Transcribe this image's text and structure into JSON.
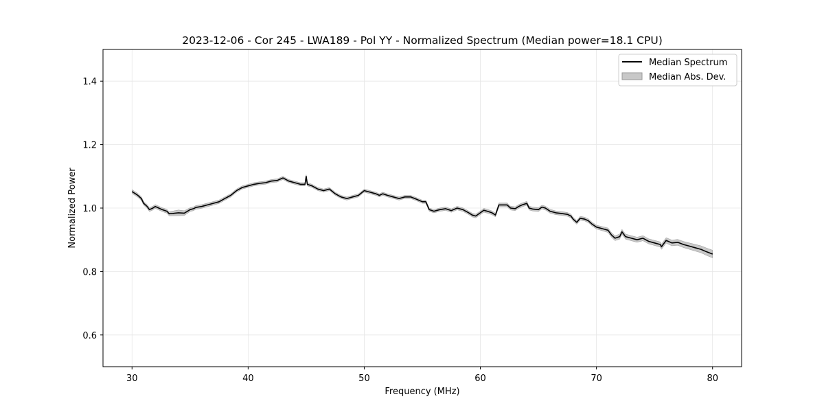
{
  "chart_data": {
    "type": "line",
    "title": "2023-12-06 - Cor 245 - LWA189 - Pol YY - Normalized Spectrum (Median power=18.1 CPU)",
    "xlabel": "Frequency (MHz)",
    "ylabel": "Normalized Power",
    "xlim": [
      27.5,
      82.5
    ],
    "ylim": [
      0.5,
      1.5
    ],
    "xticks": [
      30,
      40,
      50,
      60,
      70,
      80
    ],
    "yticks": [
      0.6,
      0.8,
      1.0,
      1.2,
      1.4
    ],
    "xtick_labels": [
      "30",
      "40",
      "50",
      "60",
      "70",
      "80"
    ],
    "ytick_labels": [
      "0.6",
      "0.8",
      "1.0",
      "1.2",
      "1.4"
    ],
    "grid": true,
    "legend": {
      "position": "top-right",
      "entries": [
        {
          "label": "Median Spectrum",
          "kind": "line"
        },
        {
          "label": "Median Abs. Dev.",
          "kind": "patch"
        }
      ]
    },
    "colors": {
      "line": "#000000",
      "band": "#b0b0b0",
      "band_edge": "#999999",
      "grid": "#e6e6e6",
      "axes": "#000000"
    },
    "series": [
      {
        "name": "Median Spectrum",
        "x": [
          30.0,
          30.3,
          30.5,
          30.8,
          31.0,
          31.3,
          31.5,
          31.8,
          32.0,
          32.3,
          32.6,
          33.0,
          33.2,
          33.5,
          34.0,
          34.5,
          35.0,
          35.3,
          35.5,
          36.0,
          36.5,
          37.0,
          37.5,
          38.0,
          38.5,
          39.0,
          39.5,
          40.0,
          40.5,
          41.0,
          41.5,
          42.0,
          42.5,
          43.0,
          43.5,
          44.0,
          44.5,
          44.9,
          45.0,
          45.1,
          45.5,
          46.0,
          46.5,
          47.0,
          47.5,
          48.0,
          48.5,
          49.0,
          49.5,
          50.0,
          50.5,
          51.0,
          51.3,
          51.6,
          52.0,
          52.5,
          53.0,
          53.5,
          54.0,
          54.5,
          55.0,
          55.3,
          55.6,
          56.0,
          56.5,
          57.0,
          57.5,
          58.0,
          58.5,
          59.0,
          59.3,
          59.6,
          60.0,
          60.3,
          60.6,
          61.0,
          61.3,
          61.6,
          62.0,
          62.3,
          62.6,
          63.0,
          63.3,
          63.6,
          64.0,
          64.2,
          64.5,
          65.0,
          65.3,
          65.6,
          66.0,
          66.5,
          67.0,
          67.5,
          67.8,
          68.0,
          68.3,
          68.6,
          69.0,
          69.3,
          69.6,
          70.0,
          70.5,
          71.0,
          71.3,
          71.6,
          72.0,
          72.2,
          72.5,
          73.0,
          73.5,
          74.0,
          74.5,
          75.0,
          75.5,
          75.6,
          76.0,
          76.5,
          77.0,
          77.5,
          78.0,
          78.5,
          79.0,
          79.5,
          80.0
        ],
        "y": [
          1.052,
          1.045,
          1.04,
          1.03,
          1.015,
          1.005,
          0.995,
          1.0,
          1.005,
          1.0,
          0.995,
          0.99,
          0.982,
          0.983,
          0.985,
          0.984,
          0.995,
          0.998,
          1.002,
          1.005,
          1.01,
          1.015,
          1.02,
          1.03,
          1.04,
          1.055,
          1.065,
          1.07,
          1.075,
          1.078,
          1.08,
          1.085,
          1.087,
          1.095,
          1.085,
          1.08,
          1.075,
          1.075,
          1.1,
          1.075,
          1.07,
          1.06,
          1.055,
          1.06,
          1.045,
          1.035,
          1.03,
          1.035,
          1.04,
          1.055,
          1.05,
          1.045,
          1.04,
          1.045,
          1.04,
          1.035,
          1.03,
          1.035,
          1.035,
          1.028,
          1.02,
          1.02,
          0.995,
          0.99,
          0.995,
          0.998,
          0.992,
          1.0,
          0.995,
          0.985,
          0.978,
          0.975,
          0.985,
          0.993,
          0.99,
          0.985,
          0.978,
          1.01,
          1.01,
          1.01,
          1.0,
          0.998,
          1.005,
          1.01,
          1.015,
          1.0,
          0.997,
          0.995,
          1.003,
          1.0,
          0.99,
          0.985,
          0.983,
          0.98,
          0.975,
          0.965,
          0.955,
          0.968,
          0.965,
          0.96,
          0.95,
          0.94,
          0.935,
          0.93,
          0.915,
          0.905,
          0.91,
          0.925,
          0.91,
          0.905,
          0.9,
          0.905,
          0.895,
          0.89,
          0.885,
          0.878,
          0.898,
          0.89,
          0.892,
          0.885,
          0.88,
          0.875,
          0.87,
          0.862,
          0.855
        ]
      },
      {
        "name": "Median Abs. Dev.",
        "x": [
          30.0,
          33.0,
          34.0,
          35.0,
          40.0,
          45.0,
          50.0,
          55.0,
          60.0,
          65.0,
          70.0,
          72.0,
          75.0,
          78.0,
          80.0
        ],
        "dev": [
          0.006,
          0.006,
          0.009,
          0.006,
          0.005,
          0.005,
          0.005,
          0.005,
          0.006,
          0.006,
          0.006,
          0.008,
          0.008,
          0.01,
          0.012
        ]
      }
    ]
  }
}
